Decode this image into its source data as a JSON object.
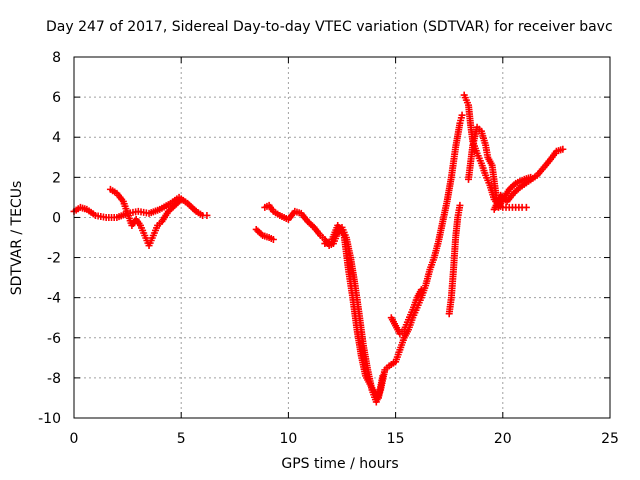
{
  "chart_data": {
    "type": "scatter",
    "title": "Day 247 of 2017, Sidereal Day-to-day VTEC variation (SDTVAR) for receiver bavc",
    "xlabel": "GPS time / hours",
    "ylabel": "SDTVAR / TECUs",
    "xlim": [
      0,
      25
    ],
    "ylim": [
      -10,
      8
    ],
    "xticks": [
      0,
      5,
      10,
      15,
      20,
      25
    ],
    "yticks": [
      -10,
      -8,
      -6,
      -4,
      -2,
      0,
      2,
      4,
      6,
      8
    ],
    "grid": true,
    "marker": "+",
    "color": "#ff0000",
    "series": [
      {
        "points": [
          [
            0,
            0.3
          ],
          [
            0.3,
            0.5
          ],
          [
            0.6,
            0.4
          ],
          [
            1.0,
            0.1
          ],
          [
            1.5,
            0.0
          ],
          [
            2.0,
            0.0
          ],
          [
            2.5,
            0.2
          ],
          [
            3.0,
            0.3
          ],
          [
            3.5,
            0.2
          ],
          [
            4.0,
            0.4
          ],
          [
            4.5,
            0.7
          ],
          [
            4.9,
            1.0
          ],
          [
            5.3,
            0.7
          ],
          [
            5.7,
            0.3
          ],
          [
            6.0,
            0.1
          ],
          [
            6.2,
            0.1
          ]
        ]
      },
      {
        "points": [
          [
            1.7,
            1.4
          ],
          [
            2.0,
            1.2
          ],
          [
            2.3,
            0.8
          ],
          [
            2.5,
            0.2
          ],
          [
            2.7,
            -0.4
          ],
          [
            2.9,
            -0.1
          ],
          [
            3.1,
            -0.4
          ],
          [
            3.3,
            -0.9
          ],
          [
            3.5,
            -1.4
          ],
          [
            3.7,
            -0.9
          ],
          [
            3.9,
            -0.4
          ],
          [
            4.1,
            -0.2
          ],
          [
            4.4,
            0.3
          ],
          [
            4.7,
            0.6
          ],
          [
            5.0,
            0.9
          ]
        ]
      },
      {
        "points": [
          [
            8.5,
            -0.6
          ],
          [
            8.8,
            -0.9
          ],
          [
            9.1,
            -1.0
          ],
          [
            9.3,
            -1.1
          ]
        ]
      },
      {
        "points": [
          [
            8.9,
            0.5
          ],
          [
            9.1,
            0.6
          ],
          [
            9.3,
            0.3
          ],
          [
            9.6,
            0.1
          ],
          [
            10.0,
            -0.1
          ],
          [
            10.3,
            0.3
          ],
          [
            10.6,
            0.2
          ],
          [
            10.9,
            -0.2
          ],
          [
            11.2,
            -0.5
          ],
          [
            11.5,
            -0.9
          ],
          [
            11.7,
            -1.1
          ],
          [
            11.9,
            -1.4
          ],
          [
            12.1,
            -1.3
          ],
          [
            12.3,
            -0.8
          ],
          [
            12.5,
            -0.5
          ],
          [
            12.7,
            -1.0
          ],
          [
            12.9,
            -2.0
          ],
          [
            13.1,
            -3.3
          ],
          [
            13.3,
            -4.8
          ],
          [
            13.5,
            -6.4
          ],
          [
            13.7,
            -7.6
          ],
          [
            13.9,
            -8.6
          ],
          [
            14.1,
            -9.2
          ],
          [
            14.3,
            -8.6
          ],
          [
            14.5,
            -7.6
          ],
          [
            14.7,
            -7.4
          ],
          [
            15.0,
            -7.2
          ],
          [
            15.2,
            -6.6
          ],
          [
            15.4,
            -6.0
          ],
          [
            15.6,
            -5.6
          ],
          [
            15.8,
            -5.0
          ],
          [
            16.0,
            -4.5
          ],
          [
            16.2,
            -4.0
          ],
          [
            16.4,
            -3.4
          ],
          [
            16.6,
            -2.6
          ],
          [
            16.8,
            -2.0
          ],
          [
            17.0,
            -1.2
          ],
          [
            17.2,
            -0.2
          ],
          [
            17.4,
            0.8
          ],
          [
            17.6,
            2.0
          ],
          [
            17.8,
            3.5
          ],
          [
            18.0,
            4.7
          ],
          [
            18.1,
            5.1
          ]
        ]
      },
      {
        "points": [
          [
            11.7,
            -1.3
          ],
          [
            12.0,
            -1.2
          ],
          [
            12.3,
            -0.4
          ],
          [
            12.6,
            -0.9
          ],
          [
            12.8,
            -2.6
          ],
          [
            13.0,
            -4.0
          ],
          [
            13.2,
            -5.6
          ],
          [
            13.4,
            -6.9
          ],
          [
            13.6,
            -7.9
          ],
          [
            13.8,
            -8.3
          ],
          [
            14.0,
            -8.7
          ],
          [
            14.2,
            -9.0
          ],
          [
            14.4,
            -7.9
          ]
        ]
      },
      {
        "points": [
          [
            14.8,
            -5.0
          ],
          [
            15.0,
            -5.4
          ],
          [
            15.2,
            -5.8
          ],
          [
            15.4,
            -5.6
          ],
          [
            15.6,
            -5.1
          ],
          [
            15.8,
            -4.6
          ],
          [
            16.0,
            -4.0
          ],
          [
            16.2,
            -3.6
          ]
        ]
      },
      {
        "points": [
          [
            17.5,
            -4.8
          ],
          [
            17.6,
            -4.0
          ],
          [
            17.7,
            -2.6
          ],
          [
            17.8,
            -1.0
          ],
          [
            17.9,
            0.0
          ],
          [
            18.0,
            0.6
          ]
        ]
      },
      {
        "points": [
          [
            18.2,
            6.1
          ],
          [
            18.4,
            5.6
          ],
          [
            18.5,
            4.6
          ],
          [
            18.6,
            3.8
          ],
          [
            18.8,
            3.2
          ],
          [
            19.0,
            2.7
          ],
          [
            19.2,
            2.1
          ],
          [
            19.4,
            1.6
          ],
          [
            19.6,
            0.9
          ],
          [
            19.8,
            0.6
          ],
          [
            20.0,
            0.5
          ],
          [
            20.3,
            0.5
          ],
          [
            20.6,
            0.5
          ],
          [
            20.9,
            0.5
          ],
          [
            21.1,
            0.5
          ]
        ]
      },
      {
        "points": [
          [
            18.4,
            1.9
          ],
          [
            18.6,
            3.6
          ],
          [
            18.8,
            4.5
          ],
          [
            19.0,
            4.3
          ],
          [
            19.2,
            3.6
          ],
          [
            19.3,
            3.0
          ],
          [
            19.5,
            2.6
          ],
          [
            19.6,
            1.8
          ],
          [
            19.7,
            1.0
          ],
          [
            19.8,
            0.5
          ],
          [
            20.0,
            0.9
          ],
          [
            20.3,
            1.4
          ],
          [
            20.6,
            1.7
          ],
          [
            21.0,
            1.9
          ],
          [
            21.3,
            2.0
          ]
        ]
      },
      {
        "points": [
          [
            19.6,
            0.4
          ],
          [
            19.9,
            1.1
          ],
          [
            20.2,
            0.8
          ],
          [
            20.5,
            1.2
          ],
          [
            20.8,
            1.5
          ],
          [
            21.2,
            1.8
          ],
          [
            21.6,
            2.1
          ],
          [
            22.0,
            2.6
          ],
          [
            22.3,
            3.0
          ],
          [
            22.5,
            3.3
          ],
          [
            22.8,
            3.4
          ]
        ]
      }
    ]
  }
}
